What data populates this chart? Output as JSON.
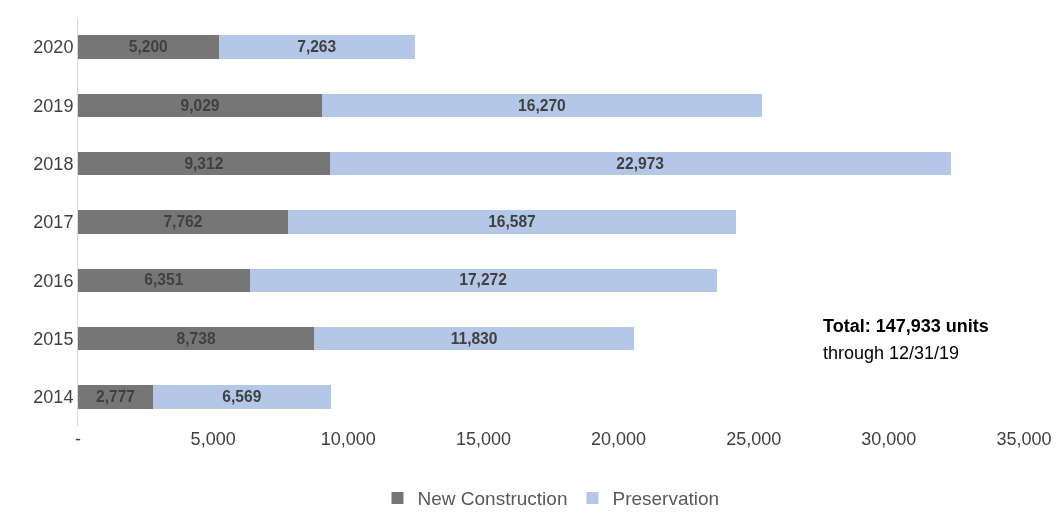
{
  "chart_data": {
    "type": "bar",
    "orientation": "horizontal",
    "stacked": true,
    "categories": [
      "2020",
      "2019",
      "2018",
      "2017",
      "2016",
      "2015",
      "2014"
    ],
    "series": [
      {
        "name": "New Construction",
        "color": "#767676",
        "values": [
          5200,
          9029,
          9312,
          7762,
          6351,
          8738,
          2777
        ],
        "value_labels": [
          "5,200",
          "9,029",
          "9,312",
          "7,762",
          "6,351",
          "8,738",
          "2,777"
        ]
      },
      {
        "name": "Preservation",
        "color": "#b4c7e7",
        "values": [
          7263,
          16270,
          22973,
          16587,
          17272,
          11830,
          6569
        ],
        "value_labels": [
          "7,263",
          "16,270",
          "22,973",
          "16,587",
          "17,272",
          "11,830",
          "6,569"
        ]
      }
    ],
    "xlim": [
      0,
      35000
    ],
    "xticks": [
      {
        "value": 0,
        "label": "-"
      },
      {
        "value": 5000,
        "label": "5,000"
      },
      {
        "value": 10000,
        "label": "10,000"
      },
      {
        "value": 15000,
        "label": "15,000"
      },
      {
        "value": 20000,
        "label": "20,000"
      },
      {
        "value": 25000,
        "label": "25,000"
      },
      {
        "value": 30000,
        "label": "30,000"
      },
      {
        "value": 35000,
        "label": "35,000"
      }
    ],
    "grid": false,
    "legend": "bottom",
    "annotations": [
      "Total: 147,933 units",
      "through 12/31/19"
    ]
  }
}
